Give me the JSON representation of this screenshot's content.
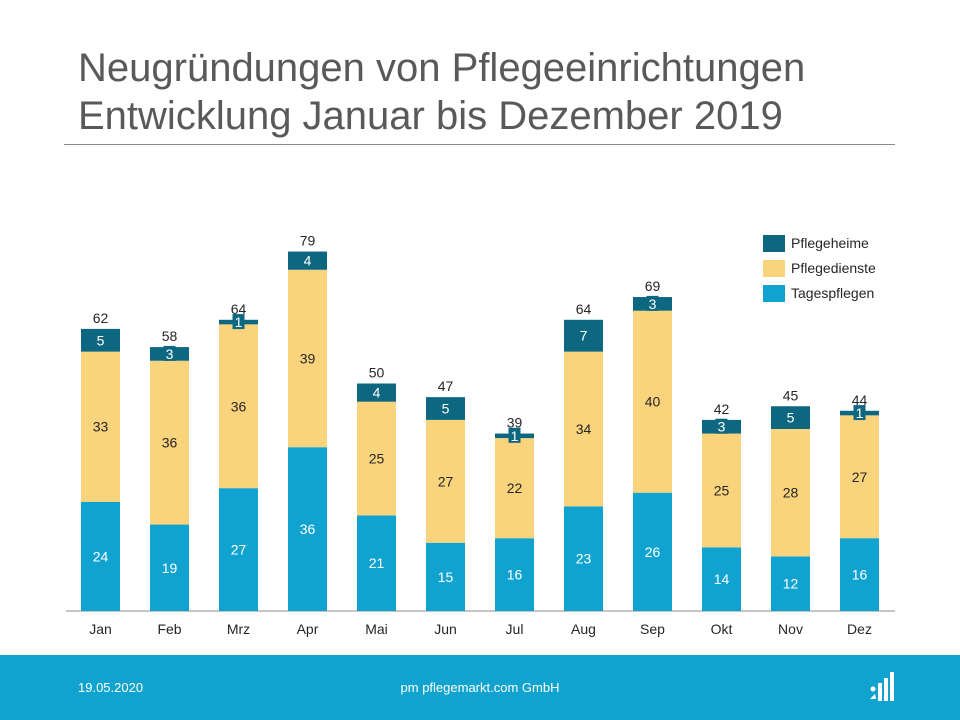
{
  "title": {
    "line1": "Neugründungen von Pflegeeinrichtungen",
    "line2": "Entwicklung Januar bis Dezember 2019"
  },
  "footer": {
    "date": "19.05.2020",
    "company": "pm pflegemarkt.com GmbH",
    "logo_icon": "pflegemarkt-logo-icon"
  },
  "chart_data": {
    "type": "bar",
    "stacked": true,
    "categories": [
      "Jan",
      "Feb",
      "Mrz",
      "Apr",
      "Mai",
      "Jun",
      "Jul",
      "Aug",
      "Sep",
      "Okt",
      "Nov",
      "Dez"
    ],
    "series": [
      {
        "name": "Tagespflegen",
        "color": "#11a3cf",
        "values": [
          24,
          19,
          27,
          36,
          21,
          15,
          16,
          23,
          26,
          14,
          12,
          16
        ]
      },
      {
        "name": "Pflegedienste",
        "color": "#fad37d",
        "values": [
          33,
          36,
          36,
          39,
          25,
          27,
          22,
          34,
          40,
          25,
          28,
          27
        ]
      },
      {
        "name": "Pflegeheime",
        "color": "#0d6781",
        "values": [
          5,
          3,
          1,
          4,
          4,
          5,
          1,
          7,
          3,
          3,
          5,
          1
        ]
      }
    ],
    "totals": [
      62,
      58,
      64,
      79,
      50,
      47,
      39,
      64,
      69,
      42,
      45,
      44
    ],
    "legend_order": [
      "Pflegeheime",
      "Pflegedienste",
      "Tagespflegen"
    ],
    "legend_position": "top-right",
    "grid": false,
    "ylim": [
      0,
      80
    ]
  }
}
